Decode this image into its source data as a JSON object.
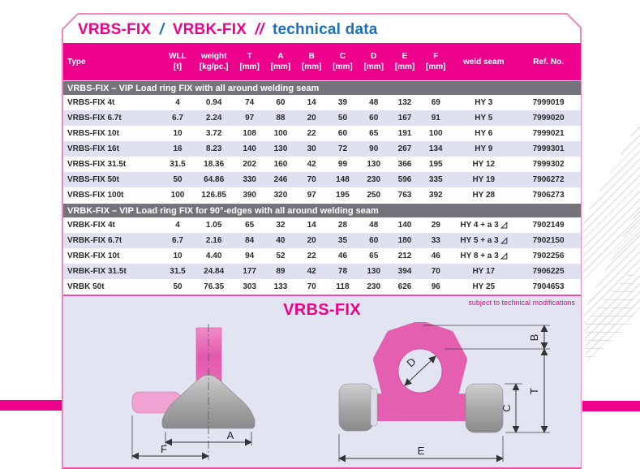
{
  "title": {
    "product1": "VRBS-FIX",
    "slash1": "/",
    "product2": "VRBK-FIX",
    "slash2": "//",
    "suffix": "technical data"
  },
  "colors": {
    "magenta": "#ec008c",
    "blue": "#1d70b7",
    "section_gray": "#737479",
    "row_alt": "#dfe1f1",
    "panel_bg": "#e2e4f2",
    "card_border_pink": "#f183bd"
  },
  "table": {
    "columns": [
      {
        "label": "Type",
        "unit": ""
      },
      {
        "label": "WLL",
        "unit": "[t]"
      },
      {
        "label": "weight",
        "unit": "[kg/pc.]"
      },
      {
        "label": "T",
        "unit": "[mm]"
      },
      {
        "label": "A",
        "unit": "[mm]"
      },
      {
        "label": "B",
        "unit": "[mm]"
      },
      {
        "label": "C",
        "unit": "[mm]"
      },
      {
        "label": "D",
        "unit": "[mm]"
      },
      {
        "label": "E",
        "unit": "[mm]"
      },
      {
        "label": "F",
        "unit": "[mm]"
      },
      {
        "label": "weld seam",
        "unit": ""
      },
      {
        "label": "Ref. No.",
        "unit": ""
      }
    ],
    "sections": [
      {
        "header": "VRBS-FIX – VIP Load ring FIX with all around welding seam",
        "rows": [
          [
            "VRBS-FIX 4t",
            "4",
            "0.94",
            "74",
            "60",
            "14",
            "39",
            "48",
            "132",
            "69",
            "HY 3",
            "7999019"
          ],
          [
            "VRBS-FIX 6.7t",
            "6.7",
            "2.24",
            "97",
            "88",
            "20",
            "50",
            "60",
            "167",
            "91",
            "HY 5",
            "7999020"
          ],
          [
            "VRBS-FIX 10t",
            "10",
            "3.72",
            "108",
            "100",
            "22",
            "60",
            "65",
            "191",
            "100",
            "HY 6",
            "7999021"
          ],
          [
            "VRBS-FIX 16t",
            "16",
            "8.23",
            "140",
            "130",
            "30",
            "72",
            "90",
            "267",
            "134",
            "HY 9",
            "7999301"
          ],
          [
            "VRBS-FIX 31.5t",
            "31.5",
            "18.36",
            "202",
            "160",
            "42",
            "99",
            "130",
            "366",
            "195",
            "HY 12",
            "7999302"
          ],
          [
            "VRBS-FIX 50t",
            "50",
            "64.86",
            "330",
            "246",
            "70",
            "148",
            "230",
            "596",
            "335",
            "HY 19",
            "7906272"
          ],
          [
            "VRBS-FIX 100t",
            "100",
            "126.85",
            "390",
            "320",
            "97",
            "195",
            "250",
            "763",
            "392",
            "HY 28",
            "7906273"
          ]
        ]
      },
      {
        "header": "VRBK-FIX – VIP Load ring FIX for 90°-edges with all around welding seam",
        "rows": [
          [
            "VRBK-FIX 4t",
            "4",
            "1.05",
            "65",
            "32",
            "14",
            "28",
            "48",
            "140",
            "29",
            "HY 4 + a 3 ◿",
            "7902149"
          ],
          [
            "VRBK-FIX 6.7t",
            "6.7",
            "2.16",
            "84",
            "40",
            "20",
            "35",
            "60",
            "180",
            "33",
            "HY 5 + a 3 ◿",
            "7902150"
          ],
          [
            "VRBK-FIX 10t",
            "10",
            "4.40",
            "94",
            "52",
            "22",
            "46",
            "65",
            "212",
            "46",
            "HY 8 + a 3 ◿",
            "7902256"
          ],
          [
            "VRBK-FIX 31.5t",
            "31.5",
            "24.84",
            "177",
            "89",
            "42",
            "78",
            "130",
            "394",
            "70",
            "HY 17",
            "7906225"
          ],
          [
            "VRBK 50t",
            "50",
            "76.35",
            "303",
            "133",
            "70",
            "118",
            "230",
            "626",
            "96",
            "HY 25",
            "7904653"
          ]
        ]
      }
    ]
  },
  "footnote": "subject to technical modifications",
  "figure": {
    "title": "VRBS-FIX",
    "labels": {
      "a": "A",
      "f": "F",
      "b": "B",
      "t": "T",
      "c": "C",
      "d": "D",
      "e": "E"
    }
  }
}
